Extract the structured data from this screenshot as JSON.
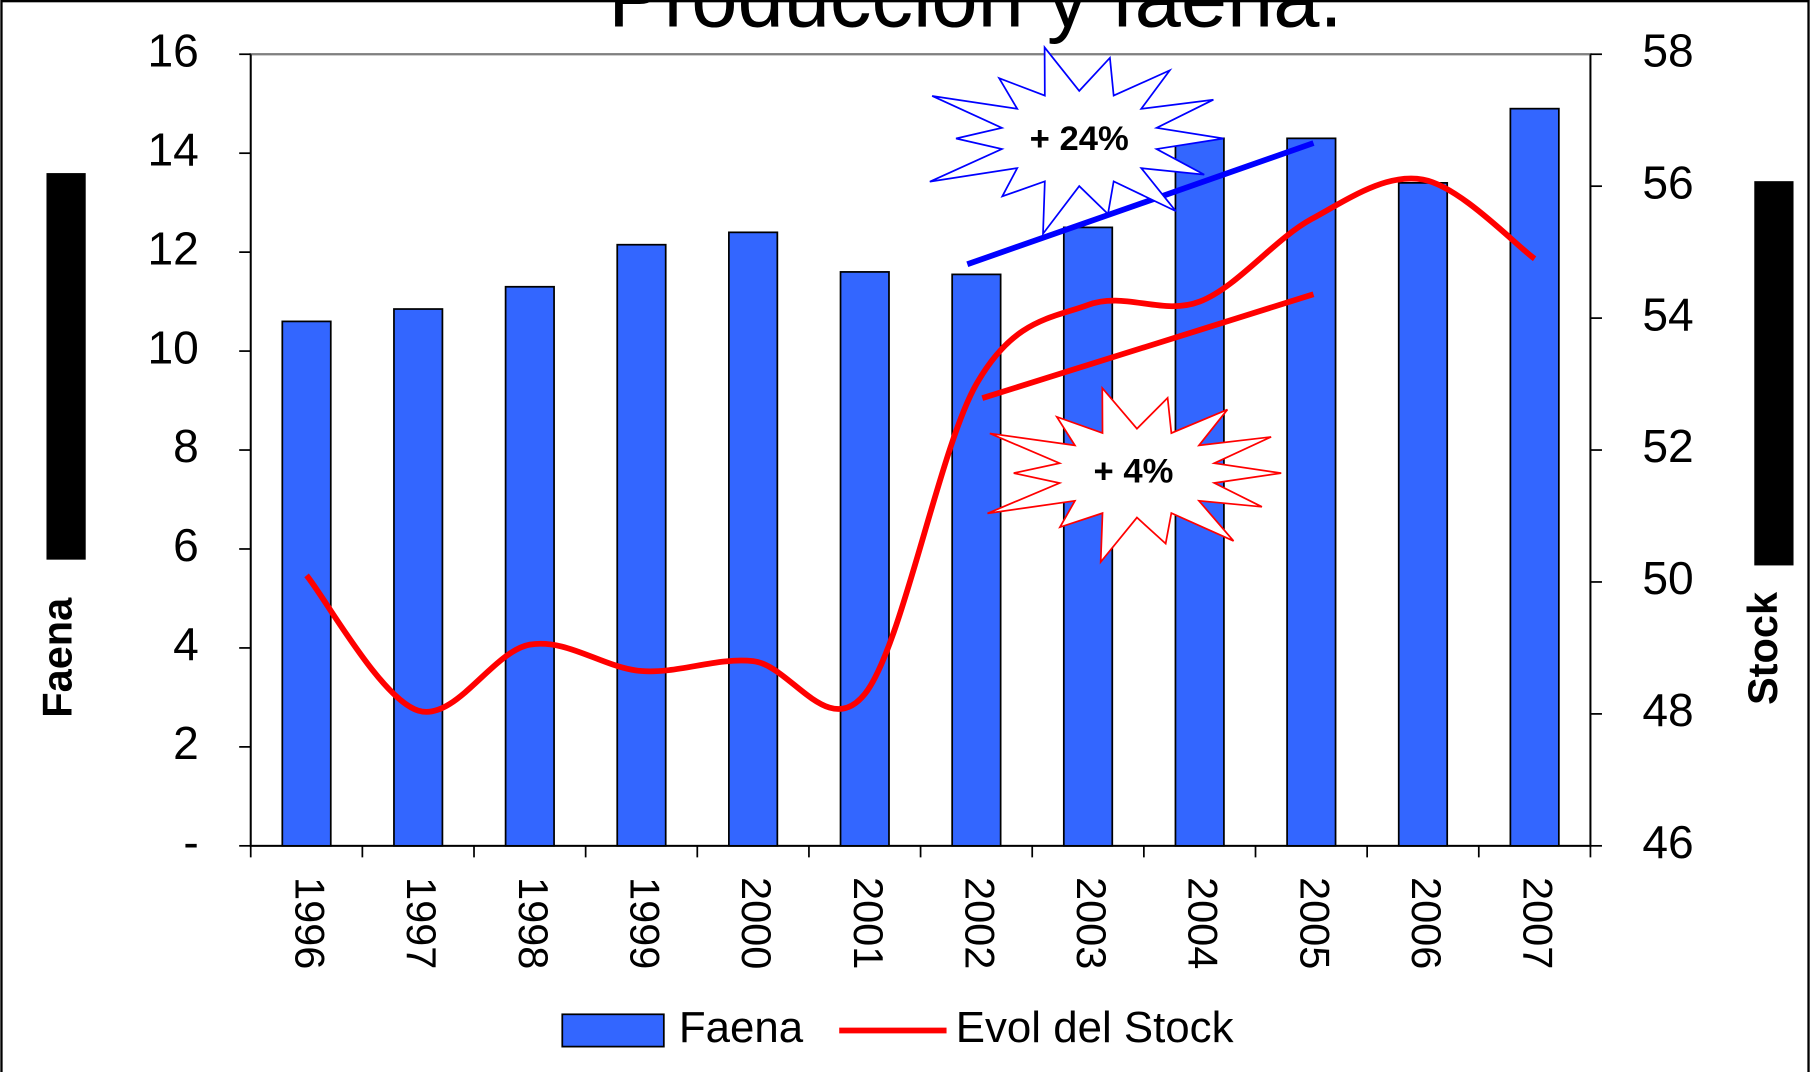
{
  "chart_data": {
    "type": "bar",
    "title": "Producción y faena.",
    "categories": [
      "1996",
      "1997",
      "1998",
      "1999",
      "2000",
      "2001",
      "2002",
      "2003",
      "2004",
      "2005",
      "2006",
      "2007"
    ],
    "series": [
      {
        "name": "Faena",
        "type": "bar",
        "color": "#3366ff",
        "values": [
          10.6,
          10.85,
          11.3,
          12.15,
          12.4,
          11.6,
          11.55,
          12.5,
          14.3,
          14.3,
          13.4,
          14.9
        ]
      },
      {
        "name": "Evol del Stock",
        "type": "line",
        "axis": "y2",
        "color": "#ff0000",
        "values": [
          50.1,
          48.05,
          49.05,
          48.65,
          48.8,
          48.3,
          53.0,
          54.2,
          54.25,
          55.5,
          56.1,
          54.9
        ]
      }
    ],
    "ylabel": "Faena",
    "y2label": "Stock",
    "ylim": [
      0,
      16
    ],
    "yticks": [
      {
        "value": 0,
        "label": "-"
      },
      2,
      4,
      6,
      8,
      10,
      12,
      14,
      16
    ],
    "y2lim": [
      46,
      58
    ],
    "y2ticks": [
      46,
      48,
      50,
      52,
      54,
      56,
      58
    ],
    "annotations": [
      "+ 24%",
      "+ 4%"
    ],
    "legend": "bottom",
    "grid": false
  }
}
